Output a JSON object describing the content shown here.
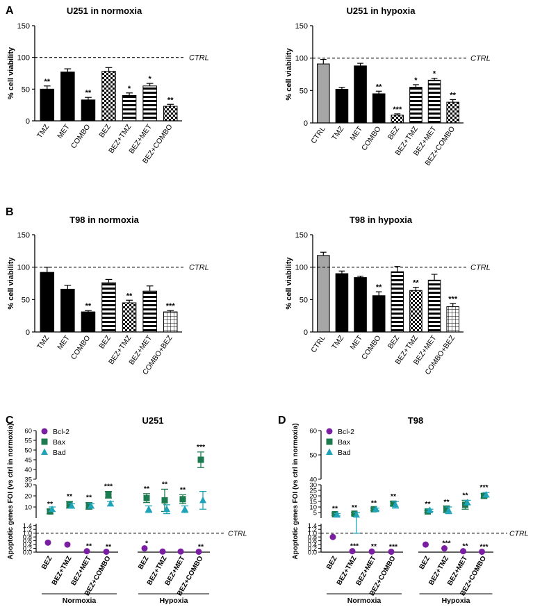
{
  "panel_letters": [
    "A",
    "B",
    "C",
    "D"
  ],
  "ctrl_line_label": "CTRL",
  "group_labels": {
    "normoxia": "Normoxia",
    "hypoxia": "Hypoxia"
  },
  "colors": {
    "black": "#000000",
    "gray": "#a6a6a6",
    "bcl2": "#7b1fa2",
    "bax": "#1b7a4e",
    "bad": "#1fa3b8"
  },
  "chart_data": [
    {
      "id": "A-normoxia",
      "type": "bar",
      "panel": "A",
      "title": "U251 in normoxia",
      "ylabel": "% cell viability",
      "ylim": [
        0,
        150
      ],
      "yticks": [
        0,
        50,
        100,
        150
      ],
      "reference_line": 100,
      "categories": [
        "TMZ",
        "MET",
        "COMBO",
        "BEZ",
        "BEZ+TMZ",
        "BEZ+MET",
        "BEZ+COMBO"
      ],
      "values": [
        50,
        77,
        33,
        78,
        40,
        55,
        23
      ],
      "errors": [
        5,
        5,
        4,
        6,
        4,
        4,
        3
      ],
      "fills": [
        "solid",
        "solid",
        "solid",
        "checker",
        "hstripe",
        "hstripe",
        "checker"
      ],
      "significance": [
        "**",
        "",
        "**",
        "",
        "*",
        "*",
        "**"
      ]
    },
    {
      "id": "A-hypoxia",
      "type": "bar",
      "panel": "A",
      "title": "U251 in hypoxia",
      "ylabel": "% cell viability",
      "ylim": [
        0,
        150
      ],
      "yticks": [
        0,
        50,
        100,
        150
      ],
      "reference_line": 100,
      "categories": [
        "CTRL",
        "TMZ",
        "MET",
        "COMBO",
        "BEZ",
        "BEZ+TMZ",
        "BEZ+MET",
        "BEZ+COMBO"
      ],
      "values": [
        91,
        52,
        88,
        45,
        12,
        55,
        66,
        32
      ],
      "errors": [
        7,
        3,
        4,
        4,
        2,
        4,
        3,
        4
      ],
      "fills": [
        "gray",
        "solid",
        "solid",
        "solid",
        "checker",
        "hstripe",
        "hstripe",
        "checker"
      ],
      "significance": [
        "",
        "",
        "",
        "**",
        "***",
        "*",
        "*",
        "**"
      ]
    },
    {
      "id": "B-normoxia",
      "type": "bar",
      "panel": "B",
      "title": "T98 in normoxia",
      "ylabel": "% cell viability",
      "ylim": [
        0,
        150
      ],
      "yticks": [
        0,
        50,
        100,
        150
      ],
      "reference_line": 100,
      "categories": [
        "TMZ",
        "MET",
        "COMBO",
        "BEZ",
        "BEZ+TMZ",
        "BEZ+MET",
        "COMBO+BEZ"
      ],
      "values": [
        92,
        66,
        31,
        76,
        45,
        63,
        31
      ],
      "errors": [
        8,
        6,
        2,
        5,
        4,
        8,
        2
      ],
      "fills": [
        "solid",
        "solid",
        "solid",
        "hstripe",
        "checker",
        "hstripe",
        "grid"
      ],
      "significance": [
        "",
        "",
        "**",
        "",
        "**",
        "",
        "***"
      ]
    },
    {
      "id": "B-hypoxia",
      "type": "bar",
      "panel": "B",
      "title": "T98 in hypoxia",
      "ylabel": "% cell viability",
      "ylim": [
        0,
        150
      ],
      "yticks": [
        0,
        50,
        100,
        150
      ],
      "reference_line": 100,
      "categories": [
        "CTRL",
        "TMZ",
        "MET",
        "COMBO",
        "BEZ",
        "BEZ+TMZ",
        "BEZ+MET",
        "COMBO+BEZ"
      ],
      "values": [
        118,
        90,
        84,
        56,
        93,
        64,
        80,
        39
      ],
      "errors": [
        5,
        4,
        2,
        6,
        8,
        5,
        9,
        5
      ],
      "fills": [
        "gray",
        "solid",
        "solid",
        "solid",
        "hstripe",
        "checker",
        "hstripe",
        "grid"
      ],
      "significance": [
        "",
        "",
        "",
        "**",
        "",
        "**",
        "",
        "***"
      ]
    },
    {
      "id": "C",
      "type": "scatter",
      "panel": "C",
      "title": "U251",
      "ylabel": "Apoptotic genes FOI (vs ctrl in normoxia)",
      "axis_segments": {
        "bottom": {
          "range": [
            0,
            1.5
          ],
          "ticks": [
            "0.0",
            "0.2",
            "0.4",
            "0.6",
            "0.8",
            "1.0",
            "1.2",
            "1.4"
          ]
        },
        "middle": {
          "range": [
            0,
            30
          ],
          "ticks": [
            "10",
            "20",
            "30"
          ]
        },
        "top": {
          "range": [
            35,
            60
          ],
          "ticks": [
            "35",
            "40",
            "45",
            "50",
            "55",
            "60"
          ]
        }
      },
      "reference_line": 1.0,
      "categories": [
        "BEZ",
        "BEZ+TMZ",
        "BEZ+MET",
        "BEZ+COMBO",
        "BEZ",
        "BEZ+TMZ",
        "BEZ+MET",
        "BEZ+COMBO"
      ],
      "groups": [
        {
          "label": "Normoxia",
          "indices": [
            0,
            1,
            2,
            3
          ]
        },
        {
          "label": "Hypoxia",
          "indices": [
            4,
            5,
            6,
            7
          ]
        }
      ],
      "series": [
        {
          "name": "Bcl-2",
          "marker": "circle",
          "color": "#7b1fa2",
          "values": [
            0.5,
            0.4,
            0.05,
            0.02,
            0.2,
            0.03,
            0.03,
            0.02
          ],
          "errors": [
            0,
            0,
            0,
            0,
            0,
            0,
            0,
            0
          ],
          "significance": [
            "",
            "",
            "**",
            "**",
            "*",
            "",
            "",
            "**"
          ]
        },
        {
          "name": "Bax",
          "marker": "square",
          "color": "#1b7a4e",
          "values": [
            6,
            12,
            11,
            21,
            18,
            16,
            17,
            45
          ],
          "errors": [
            2,
            3,
            3,
            3,
            4,
            10,
            4,
            4
          ],
          "significance": [
            "**",
            "**",
            "**",
            "***",
            "**",
            "**",
            "**",
            "***"
          ]
        },
        {
          "name": "Bad",
          "marker": "triangle",
          "color": "#1fa3b8",
          "values": [
            8,
            11,
            11,
            13,
            8,
            8,
            8,
            16
          ],
          "errors": [
            2,
            2,
            2,
            2,
            3,
            4,
            3,
            8
          ],
          "significance": [
            "",
            "",
            "",
            "",
            "",
            "",
            "",
            ""
          ]
        }
      ]
    },
    {
      "id": "D",
      "type": "scatter",
      "panel": "D",
      "title": "T98",
      "ylabel": "Apoptotic genes FOI (vs ctrl in normoxia)",
      "axis_segments": {
        "bottom": {
          "range": [
            0,
            1.5
          ],
          "ticks": [
            "0.0",
            "0.2",
            "0.4",
            "0.6",
            "0.8",
            "1.0",
            "1.2",
            "1.4"
          ]
        },
        "middle": {
          "range": [
            0,
            30
          ],
          "ticks": [
            "5",
            "10",
            "15",
            "20",
            "25",
            "30"
          ]
        },
        "top": {
          "range": [
            40,
            60
          ],
          "ticks": [
            "40",
            "50",
            "60"
          ]
        }
      },
      "reference_line": 1.0,
      "categories": [
        "BEZ",
        "BEZ+TMZ",
        "BEZ+MET",
        "BEZ+COMBO",
        "BEZ",
        "BEZ+TMZ",
        "BEZ+MET",
        "BEZ+COMBO"
      ],
      "groups": [
        {
          "label": "Normoxia",
          "indices": [
            0,
            1,
            2,
            3
          ]
        },
        {
          "label": "Hypoxia",
          "indices": [
            4,
            5,
            6,
            7
          ]
        }
      ],
      "series": [
        {
          "name": "Bcl-2",
          "marker": "circle",
          "color": "#7b1fa2",
          "values": [
            0.8,
            0.05,
            0.03,
            0.02,
            0.4,
            0.2,
            0.05,
            0.02
          ],
          "errors": [
            0,
            0,
            0,
            0,
            0,
            0,
            0,
            0
          ],
          "significance": [
            "",
            "***",
            "**",
            "***",
            "",
            "***",
            "**",
            "***"
          ]
        },
        {
          "name": "Bax",
          "marker": "square",
          "color": "#1b7a4e",
          "values": [
            3.5,
            4,
            8,
            13,
            6,
            8,
            12,
            20
          ],
          "errors": [
            1,
            1,
            1,
            2,
            1,
            3,
            4,
            2
          ],
          "significance": [
            "",
            "",
            "",
            "",
            "",
            "",
            "",
            ""
          ]
        },
        {
          "name": "Bad",
          "marker": "triangle",
          "color": "#1fa3b8",
          "values": [
            3,
            3,
            8,
            12,
            7,
            7,
            14,
            21
          ],
          "errors": [
            1,
            2,
            1,
            3,
            1,
            3,
            2,
            2
          ],
          "significance": [
            "**",
            "**",
            "**",
            "**",
            "**",
            "**",
            "**",
            "***"
          ]
        }
      ]
    }
  ]
}
